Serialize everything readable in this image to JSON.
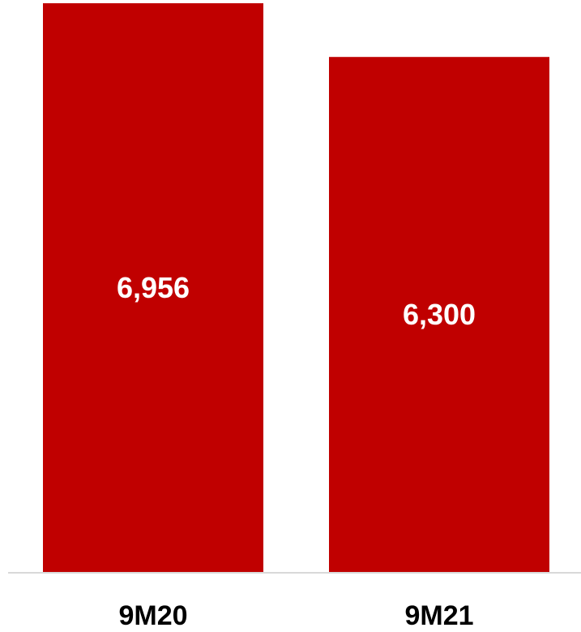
{
  "chart_data": {
    "type": "bar",
    "categories": [
      "9M20",
      "9M21"
    ],
    "values": [
      6956,
      6300
    ],
    "data_labels": [
      "6,956",
      "6,300"
    ],
    "title": "",
    "xlabel": "",
    "ylabel": "",
    "ylim": [
      0,
      7000
    ],
    "grid": false,
    "legend": "none",
    "bar_color": "#C00000"
  }
}
